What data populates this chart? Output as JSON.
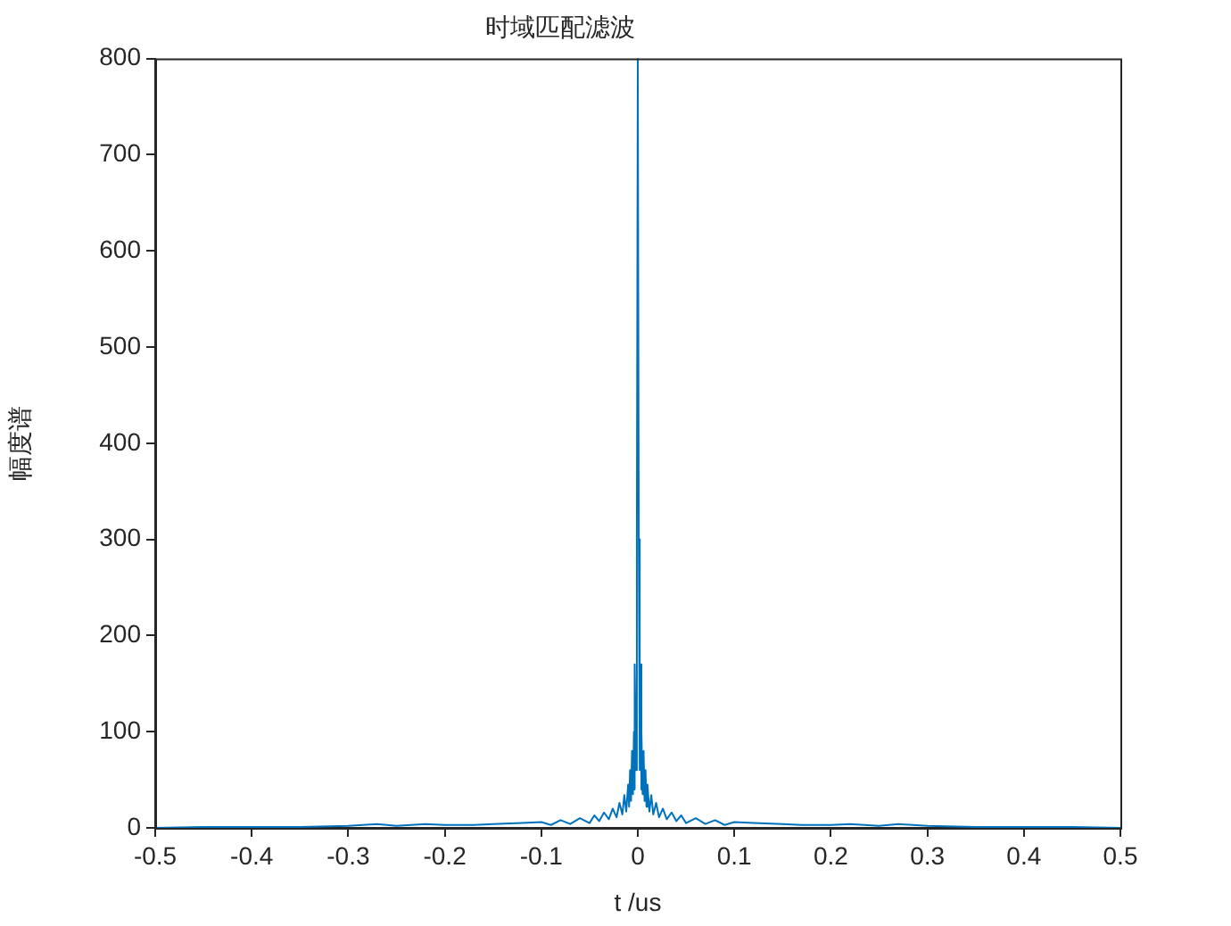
{
  "chart_data": {
    "type": "line",
    "title": "时域匹配滤波",
    "xlabel": "t /us",
    "ylabel": "幅度谱",
    "x": [
      -0.5,
      -0.45,
      -0.4,
      -0.35,
      -0.3,
      -0.27,
      -0.25,
      -0.22,
      -0.2,
      -0.17,
      -0.15,
      -0.12,
      -0.1,
      -0.09,
      -0.08,
      -0.07,
      -0.06,
      -0.05,
      -0.045,
      -0.04,
      -0.035,
      -0.03,
      -0.026,
      -0.022,
      -0.019,
      -0.016,
      -0.014,
      -0.012,
      -0.01,
      -0.009,
      -0.008,
      -0.007,
      -0.006,
      -0.005,
      -0.004,
      -0.0035,
      -0.003,
      -0.002,
      -0.001,
      0,
      0.001,
      0.002,
      0.003,
      0.0035,
      0.004,
      0.005,
      0.006,
      0.007,
      0.008,
      0.009,
      0.01,
      0.012,
      0.014,
      0.016,
      0.019,
      0.022,
      0.026,
      0.03,
      0.035,
      0.04,
      0.045,
      0.05,
      0.06,
      0.07,
      0.08,
      0.09,
      0.1,
      0.12,
      0.15,
      0.17,
      0.2,
      0.22,
      0.25,
      0.27,
      0.3,
      0.35,
      0.4,
      0.45,
      0.5
    ],
    "series": [
      {
        "color": "#0072bd",
        "values": [
          0,
          1,
          1,
          1,
          2,
          4,
          2,
          4,
          3,
          3,
          4,
          5,
          6,
          3,
          8,
          4,
          10,
          5,
          13,
          7,
          16,
          9,
          20,
          11,
          26,
          14,
          34,
          17,
          45,
          22,
          60,
          28,
          80,
          35,
          100,
          40,
          170,
          60,
          300,
          800,
          300,
          60,
          170,
          40,
          100,
          35,
          80,
          28,
          60,
          22,
          45,
          17,
          34,
          14,
          26,
          11,
          20,
          9,
          16,
          7,
          13,
          5,
          10,
          4,
          8,
          3,
          6,
          5,
          4,
          3,
          3,
          4,
          2,
          4,
          2,
          1,
          1,
          1,
          0
        ]
      }
    ],
    "xlim": [
      -0.5,
      0.5
    ],
    "xticks": [
      -0.5,
      -0.4,
      -0.3,
      -0.2,
      -0.1,
      0,
      0.1,
      0.2,
      0.3,
      0.4,
      0.5
    ],
    "ylim": [
      0,
      800
    ],
    "yticks": [
      0,
      100,
      200,
      300,
      400,
      500,
      600,
      700,
      800
    ],
    "grid": false,
    "legend": false,
    "marker": "none",
    "line_style": "solid"
  }
}
